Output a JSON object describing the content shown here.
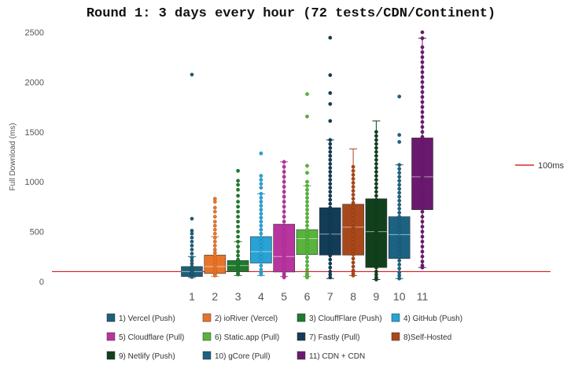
{
  "chart_data": {
    "type": "box",
    "title": "Round 1: 3 days every hour (72 tests/CDN/Continent)",
    "ylabel": "Full Download (ms)",
    "ylim": [
      0,
      2500
    ],
    "yticks": [
      0,
      500,
      1000,
      1500,
      2000,
      2500
    ],
    "grid": false,
    "reference_line": {
      "label": "100ms",
      "value": 100,
      "color": "#cc0000"
    },
    "categories": [
      "1",
      "2",
      "3",
      "4",
      "5",
      "6",
      "7",
      "8",
      "9",
      "10",
      "11"
    ],
    "series": [
      {
        "name": "1) Vercel (Push)",
        "color": "#1f5f7a",
        "q1": 50,
        "median": 100,
        "q3": 150,
        "whisker_low": 40,
        "whisker_high": 250,
        "points": [
          2075,
          630,
          510,
          480,
          440,
          400,
          360,
          320,
          280,
          240,
          210,
          180,
          150,
          130,
          110,
          100,
          90,
          80,
          70,
          60,
          50,
          45
        ]
      },
      {
        "name": "2) ioRiver (Vercel)",
        "color": "#e8742a",
        "q1": 80,
        "median": 150,
        "q3": 265,
        "whisker_low": 50,
        "whisker_high": 450,
        "points": [
          830,
          800,
          740,
          700,
          650,
          600,
          560,
          520,
          480,
          440,
          400,
          360,
          320,
          290,
          260,
          230,
          200,
          170,
          140,
          110,
          90,
          70,
          60
        ]
      },
      {
        "name": "3) ClouffFlare (Push)",
        "color": "#1e7a2e",
        "q1": 100,
        "median": 160,
        "q3": 210,
        "whisker_low": 60,
        "whisker_high": 400,
        "points": [
          1110,
          1010,
          970,
          920,
          860,
          800,
          750,
          700,
          650,
          600,
          550,
          500,
          450,
          400,
          350,
          300,
          260,
          220,
          190,
          160,
          130,
          100,
          80,
          70
        ]
      },
      {
        "name": "4) GitHub (Push)",
        "color": "#27a3d6",
        "q1": 185,
        "median": 300,
        "q3": 450,
        "whisker_low": 60,
        "whisker_high": 880,
        "points": [
          1285,
          1060,
          1020,
          980,
          940,
          880,
          840,
          800,
          760,
          720,
          680,
          640,
          600,
          560,
          520,
          480,
          440,
          400,
          360,
          320,
          280,
          240,
          200,
          160,
          120,
          90,
          70
        ]
      },
      {
        "name": "5) Cloudflare (Pull)",
        "color": "#b8349e",
        "q1": 95,
        "median": 250,
        "q3": 575,
        "whisker_low": 50,
        "whisker_high": 1200,
        "points": [
          1200,
          1150,
          1100,
          1050,
          1000,
          950,
          900,
          850,
          800,
          750,
          700,
          650,
          600,
          550,
          500,
          450,
          400,
          350,
          300,
          250,
          200,
          150,
          110,
          80,
          60,
          40
        ]
      },
      {
        "name": "6) Static.app (Pull)",
        "color": "#58b43c",
        "q1": 270,
        "median": 430,
        "q3": 520,
        "whisker_low": 50,
        "whisker_high": 960,
        "points": [
          1880,
          1655,
          1160,
          1090,
          1000,
          960,
          920,
          880,
          840,
          800,
          760,
          720,
          680,
          640,
          600,
          560,
          520,
          480,
          440,
          400,
          360,
          320,
          280,
          240,
          200,
          160,
          120,
          80,
          60,
          40
        ]
      },
      {
        "name": "7) Fastly (Pull)",
        "color": "#123c57",
        "q1": 265,
        "median": 475,
        "q3": 740,
        "whisker_low": 30,
        "whisker_high": 1420,
        "points": [
          2445,
          2070,
          1890,
          1780,
          1610,
          1420,
          1380,
          1340,
          1300,
          1260,
          1220,
          1180,
          1140,
          1100,
          1060,
          1020,
          980,
          940,
          900,
          860,
          820,
          780,
          740,
          700,
          660,
          620,
          580,
          540,
          500,
          460,
          420,
          380,
          340,
          300,
          260,
          220,
          180,
          140,
          100,
          70,
          40
        ]
      },
      {
        "name": "8)Self-Hosted",
        "color": "#a9481a",
        "q1": 265,
        "median": 545,
        "q3": 775,
        "whisker_low": 60,
        "whisker_high": 1330,
        "points": [
          1150,
          1110,
          1070,
          1030,
          990,
          950,
          910,
          870,
          830,
          790,
          750,
          710,
          670,
          630,
          590,
          550,
          510,
          470,
          430,
          390,
          350,
          310,
          270,
          230,
          190,
          150,
          110,
          80,
          60
        ]
      },
      {
        "name": "9) Netlify (Push)",
        "color": "#12401d",
        "q1": 140,
        "median": 500,
        "q3": 830,
        "whisker_low": 20,
        "whisker_high": 1610,
        "points": [
          1500,
          1460,
          1420,
          1380,
          1340,
          1300,
          1260,
          1220,
          1180,
          1140,
          1100,
          1060,
          1020,
          980,
          940,
          900,
          860,
          820,
          780,
          740,
          700,
          660,
          620,
          580,
          540,
          500,
          460,
          420,
          380,
          340,
          300,
          260,
          220,
          180,
          140,
          100,
          70,
          40,
          20
        ]
      },
      {
        "name": "10) gCore (Pull)",
        "color": "#1c6283",
        "q1": 230,
        "median": 470,
        "q3": 650,
        "whisker_low": 30,
        "whisker_high": 1170,
        "points": [
          1855,
          1470,
          1400,
          1170,
          1130,
          1090,
          1050,
          1010,
          970,
          930,
          890,
          850,
          810,
          770,
          730,
          690,
          650,
          610,
          570,
          530,
          490,
          450,
          410,
          370,
          330,
          290,
          250,
          210,
          170,
          130,
          90,
          60,
          30
        ]
      },
      {
        "name": "11) CDN + CDN",
        "color": "#6a1a6e",
        "q1": 720,
        "median": 1050,
        "q3": 1440,
        "whisker_low": 140,
        "whisker_high": 2440,
        "points": [
          2500,
          2440,
          2350,
          2300,
          2250,
          2200,
          2150,
          2100,
          2050,
          2000,
          1950,
          1900,
          1850,
          1800,
          1750,
          1700,
          1650,
          1600,
          1550,
          1500,
          1450,
          1400,
          1350,
          1300,
          1250,
          1200,
          1150,
          1100,
          1050,
          1000,
          950,
          900,
          850,
          800,
          750,
          700,
          650,
          600,
          550,
          500,
          450,
          400,
          350,
          300,
          250,
          200,
          160,
          140
        ]
      }
    ]
  }
}
